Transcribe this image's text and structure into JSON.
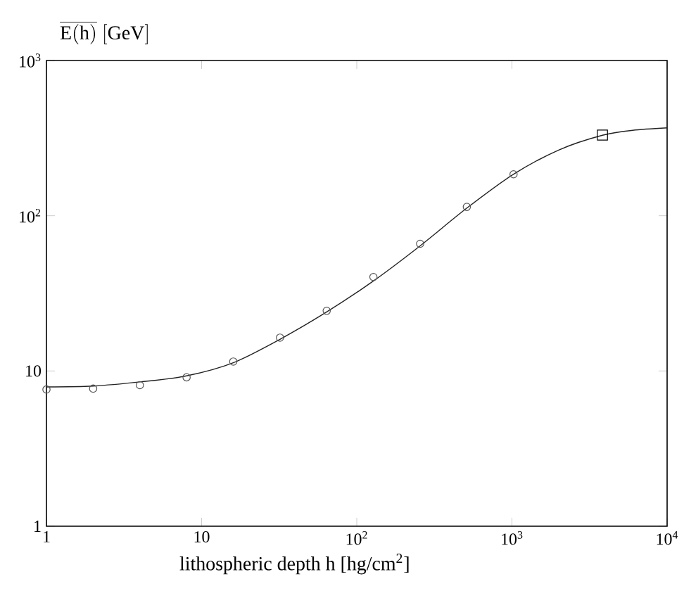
{
  "chart_data": {
    "type": "line",
    "ylabel": "\\overline{\\mathrm{E(h)}}\\ [\\mathrm{GeV}]",
    "xlabel": "lithospheric depth h [hg/cm$^{2}$]",
    "log": "xy",
    "xlim": [
      1,
      10000
    ],
    "ylim": [
      1,
      1000
    ],
    "xticks": [
      1,
      10,
      {
        "value": 100,
        "label": "10$^{2}$"
      },
      {
        "value": 1000,
        "label": "10$^{3}$"
      },
      {
        "value": 10000,
        "label": "10$^{4}$"
      }
    ],
    "yticks": [
      1,
      10,
      {
        "value": 100,
        "label": "10$^{2}$"
      },
      {
        "value": 1000,
        "label": "10$^{3}$"
      }
    ],
    "series": [
      {
        "color": "#222222",
        "marker": "none",
        "line_style": "solid",
        "x": [
          1,
          2,
          4,
          8,
          16,
          32,
          64,
          128,
          256,
          512,
          1024,
          2000,
          3830,
          6000,
          10000
        ],
        "values": [
          7.9,
          8.0,
          8.5,
          9.3,
          11.3,
          16,
          24,
          38,
          64,
          112,
          185,
          265,
          330,
          355,
          368
        ]
      },
      {
        "type": "scatter",
        "color": "#555555",
        "marker": "circle",
        "x": [
          1,
          2,
          4,
          8,
          16,
          32,
          64,
          128,
          256,
          512,
          1024
        ],
        "values": [
          7.6,
          7.7,
          8.1,
          9.1,
          11.5,
          16.4,
          24.4,
          40.3,
          66,
          114,
          185
        ]
      },
      {
        "type": "scatter",
        "color": "#000000",
        "marker": "square",
        "x": [
          3830
        ],
        "values": [
          331
        ]
      }
    ]
  }
}
